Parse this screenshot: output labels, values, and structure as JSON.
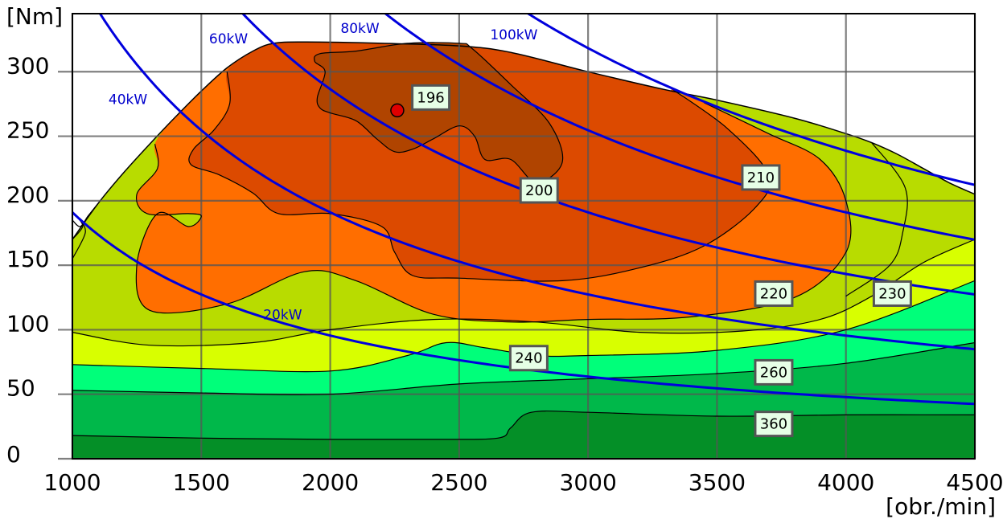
{
  "chart_data": {
    "type": "contour",
    "title": "",
    "xlabel": "[obr./min]",
    "ylabel": "[Nm]",
    "xlim": [
      1000,
      4500
    ],
    "ylim": [
      0,
      345
    ],
    "x_ticks": [
      "1000",
      "1500",
      "2000",
      "2500",
      "3000",
      "3500",
      "4000",
      "4500"
    ],
    "y_ticks": [
      "0",
      "50",
      "100",
      "150",
      "200",
      "250",
      "300"
    ],
    "grid": true,
    "colors": {
      "c360": "#048f27",
      "c260": "#00b84a",
      "c240": "#00ff7a",
      "c230": "#d8ff00",
      "c220": "#b8dc00",
      "c210": "#ff6e00",
      "c200": "#dc4a00",
      "c196": "#b04400",
      "power": "#0000dd",
      "grid": "#555555"
    },
    "full_load": [
      [
        1000,
        170
      ],
      [
        1100,
        198
      ],
      [
        1200,
        222
      ],
      [
        1300,
        244
      ],
      [
        1400,
        265
      ],
      [
        1500,
        285
      ],
      [
        1600,
        303
      ],
      [
        1700,
        316
      ],
      [
        1780,
        322
      ],
      [
        1900,
        323
      ],
      [
        2200,
        322
      ],
      [
        2500,
        320
      ],
      [
        2700,
        315
      ],
      [
        3000,
        300
      ],
      [
        3300,
        286
      ],
      [
        3500,
        278
      ],
      [
        3800,
        264
      ],
      [
        4000,
        252
      ],
      [
        4100,
        245
      ],
      [
        4200,
        236
      ],
      [
        4300,
        225
      ],
      [
        4400,
        214
      ],
      [
        4500,
        205
      ]
    ],
    "contours": [
      {
        "label": "360",
        "label_x": 3720,
        "label_y": 27,
        "points": [
          [
            1000,
            18
          ],
          [
            1500,
            16
          ],
          [
            2000,
            15
          ],
          [
            2400,
            15
          ],
          [
            2650,
            16
          ],
          [
            2700,
            24
          ],
          [
            2780,
            36
          ],
          [
            3000,
            36
          ],
          [
            3500,
            33
          ],
          [
            4000,
            34
          ],
          [
            4500,
            34
          ]
        ]
      },
      {
        "label": "260",
        "label_x": 3720,
        "label_y": 67,
        "points": [
          [
            1000,
            53
          ],
          [
            1500,
            51
          ],
          [
            2000,
            50
          ],
          [
            2500,
            58
          ],
          [
            3000,
            62
          ],
          [
            3500,
            66
          ],
          [
            4000,
            74
          ],
          [
            4500,
            90
          ]
        ]
      },
      {
        "label": "240",
        "label_x": 2770,
        "label_y": 78,
        "points": [
          [
            1000,
            73
          ],
          [
            1500,
            70
          ],
          [
            2000,
            68
          ],
          [
            2300,
            80
          ],
          [
            2450,
            90
          ],
          [
            2600,
            86
          ],
          [
            2800,
            80
          ],
          [
            3000,
            80
          ],
          [
            3500,
            84
          ],
          [
            4000,
            100
          ],
          [
            4500,
            138
          ]
        ]
      },
      {
        "label": "230",
        "label_x": 4180,
        "label_y": 128,
        "points": [
          [
            1000,
            98
          ],
          [
            1300,
            88
          ],
          [
            1700,
            90
          ],
          [
            2000,
            100
          ],
          [
            2400,
            108
          ],
          [
            2800,
            106
          ],
          [
            3200,
            98
          ],
          [
            3600,
            99
          ],
          [
            3900,
            108
          ],
          [
            4100,
            126
          ],
          [
            4300,
            152
          ],
          [
            4500,
            170
          ]
        ]
      },
      {
        "label": "220",
        "label_x": 3720,
        "label_y": 128,
        "points": [
          [
            1000,
            155
          ],
          [
            1050,
            175
          ],
          [
            1030,
            185
          ],
          [
            1020,
            187
          ],
          [
            1040,
            180
          ],
          [
            1000,
            170
          ]
        ]
      },
      {
        "label": "",
        "label_x": 0,
        "label_y": 0,
        "points": [
          [
            1000,
            185
          ],
          [
            1030,
            180
          ],
          [
            1060,
            188
          ],
          [
            1100,
            198
          ]
        ]
      },
      {
        "label": "210",
        "label_x": 3670,
        "label_y": 218,
        "points": [
          [
            1320,
            244
          ],
          [
            1330,
            225
          ],
          [
            1250,
            205
          ],
          [
            1290,
            190
          ],
          [
            1450,
            190
          ],
          [
            1500,
            188
          ],
          [
            1450,
            180
          ],
          [
            1330,
            190
          ],
          [
            1250,
            150
          ],
          [
            1300,
            115
          ],
          [
            1600,
            120
          ],
          [
            1900,
            145
          ],
          [
            2100,
            138
          ],
          [
            2400,
            112
          ],
          [
            2700,
            106
          ],
          [
            3000,
            108
          ],
          [
            3400,
            110
          ],
          [
            3800,
            125
          ],
          [
            4000,
            160
          ],
          [
            4000,
            200
          ],
          [
            3900,
            232
          ],
          [
            3700,
            252
          ],
          [
            3450,
            276
          ]
        ]
      },
      {
        "label": "",
        "label_x": 0,
        "label_y": 0,
        "points": [
          [
            4100,
            245
          ],
          [
            4230,
            210
          ],
          [
            4220,
            175
          ],
          [
            4170,
            150
          ],
          [
            4000,
            126
          ]
        ]
      },
      {
        "label": "200",
        "label_x": 2810,
        "label_y": 208,
        "points": [
          [
            1600,
            300
          ],
          [
            1610,
            275
          ],
          [
            1550,
            255
          ],
          [
            1470,
            240
          ],
          [
            1460,
            228
          ],
          [
            1570,
            220
          ],
          [
            1700,
            206
          ],
          [
            1800,
            190
          ],
          [
            2000,
            190
          ],
          [
            2200,
            180
          ],
          [
            2250,
            160
          ],
          [
            2320,
            142
          ],
          [
            2500,
            140
          ],
          [
            2900,
            138
          ],
          [
            3200,
            148
          ],
          [
            3450,
            165
          ],
          [
            3650,
            195
          ],
          [
            3700,
            220
          ],
          [
            3540,
            256
          ],
          [
            3330,
            286
          ]
        ]
      },
      {
        "label": "196",
        "label_x": 2390,
        "label_y": 280,
        "points": [
          [
            2550,
            318
          ],
          [
            2700,
            290
          ],
          [
            2850,
            260
          ],
          [
            2900,
            230
          ],
          [
            2800,
            214
          ],
          [
            2700,
            232
          ],
          [
            2600,
            232
          ],
          [
            2560,
            250
          ],
          [
            2500,
            258
          ],
          [
            2400,
            248
          ],
          [
            2320,
            240
          ],
          [
            2250,
            238
          ],
          [
            2180,
            248
          ],
          [
            2100,
            262
          ],
          [
            2000,
            268
          ],
          [
            1960,
            272
          ],
          [
            1950,
            280
          ],
          [
            1980,
            300
          ],
          [
            1940,
            308
          ],
          [
            1960,
            314
          ],
          [
            2100,
            316
          ],
          [
            2300,
            322
          ],
          [
            2500,
            322
          ]
        ]
      }
    ],
    "contour_labels": [
      "360",
      "260",
      "240",
      "230",
      "220",
      "210",
      "200",
      "196"
    ],
    "power_lines": [
      {
        "name": "20kW",
        "label_x": 1740,
        "label_y": 108,
        "kw": 20
      },
      {
        "name": "40kW",
        "label_x": 1140,
        "label_y": 275,
        "kw": 40
      },
      {
        "name": "60kW",
        "label_x": 1530,
        "label_y": 322,
        "kw": 60
      },
      {
        "name": "80kW",
        "label_x": 2040,
        "label_y": 330,
        "kw": 80
      },
      {
        "name": "100kW",
        "label_x": 2620,
        "label_y": 325,
        "kw": 100
      }
    ],
    "marker": {
      "x": 2260,
      "y": 270,
      "color": "#e00000"
    }
  }
}
